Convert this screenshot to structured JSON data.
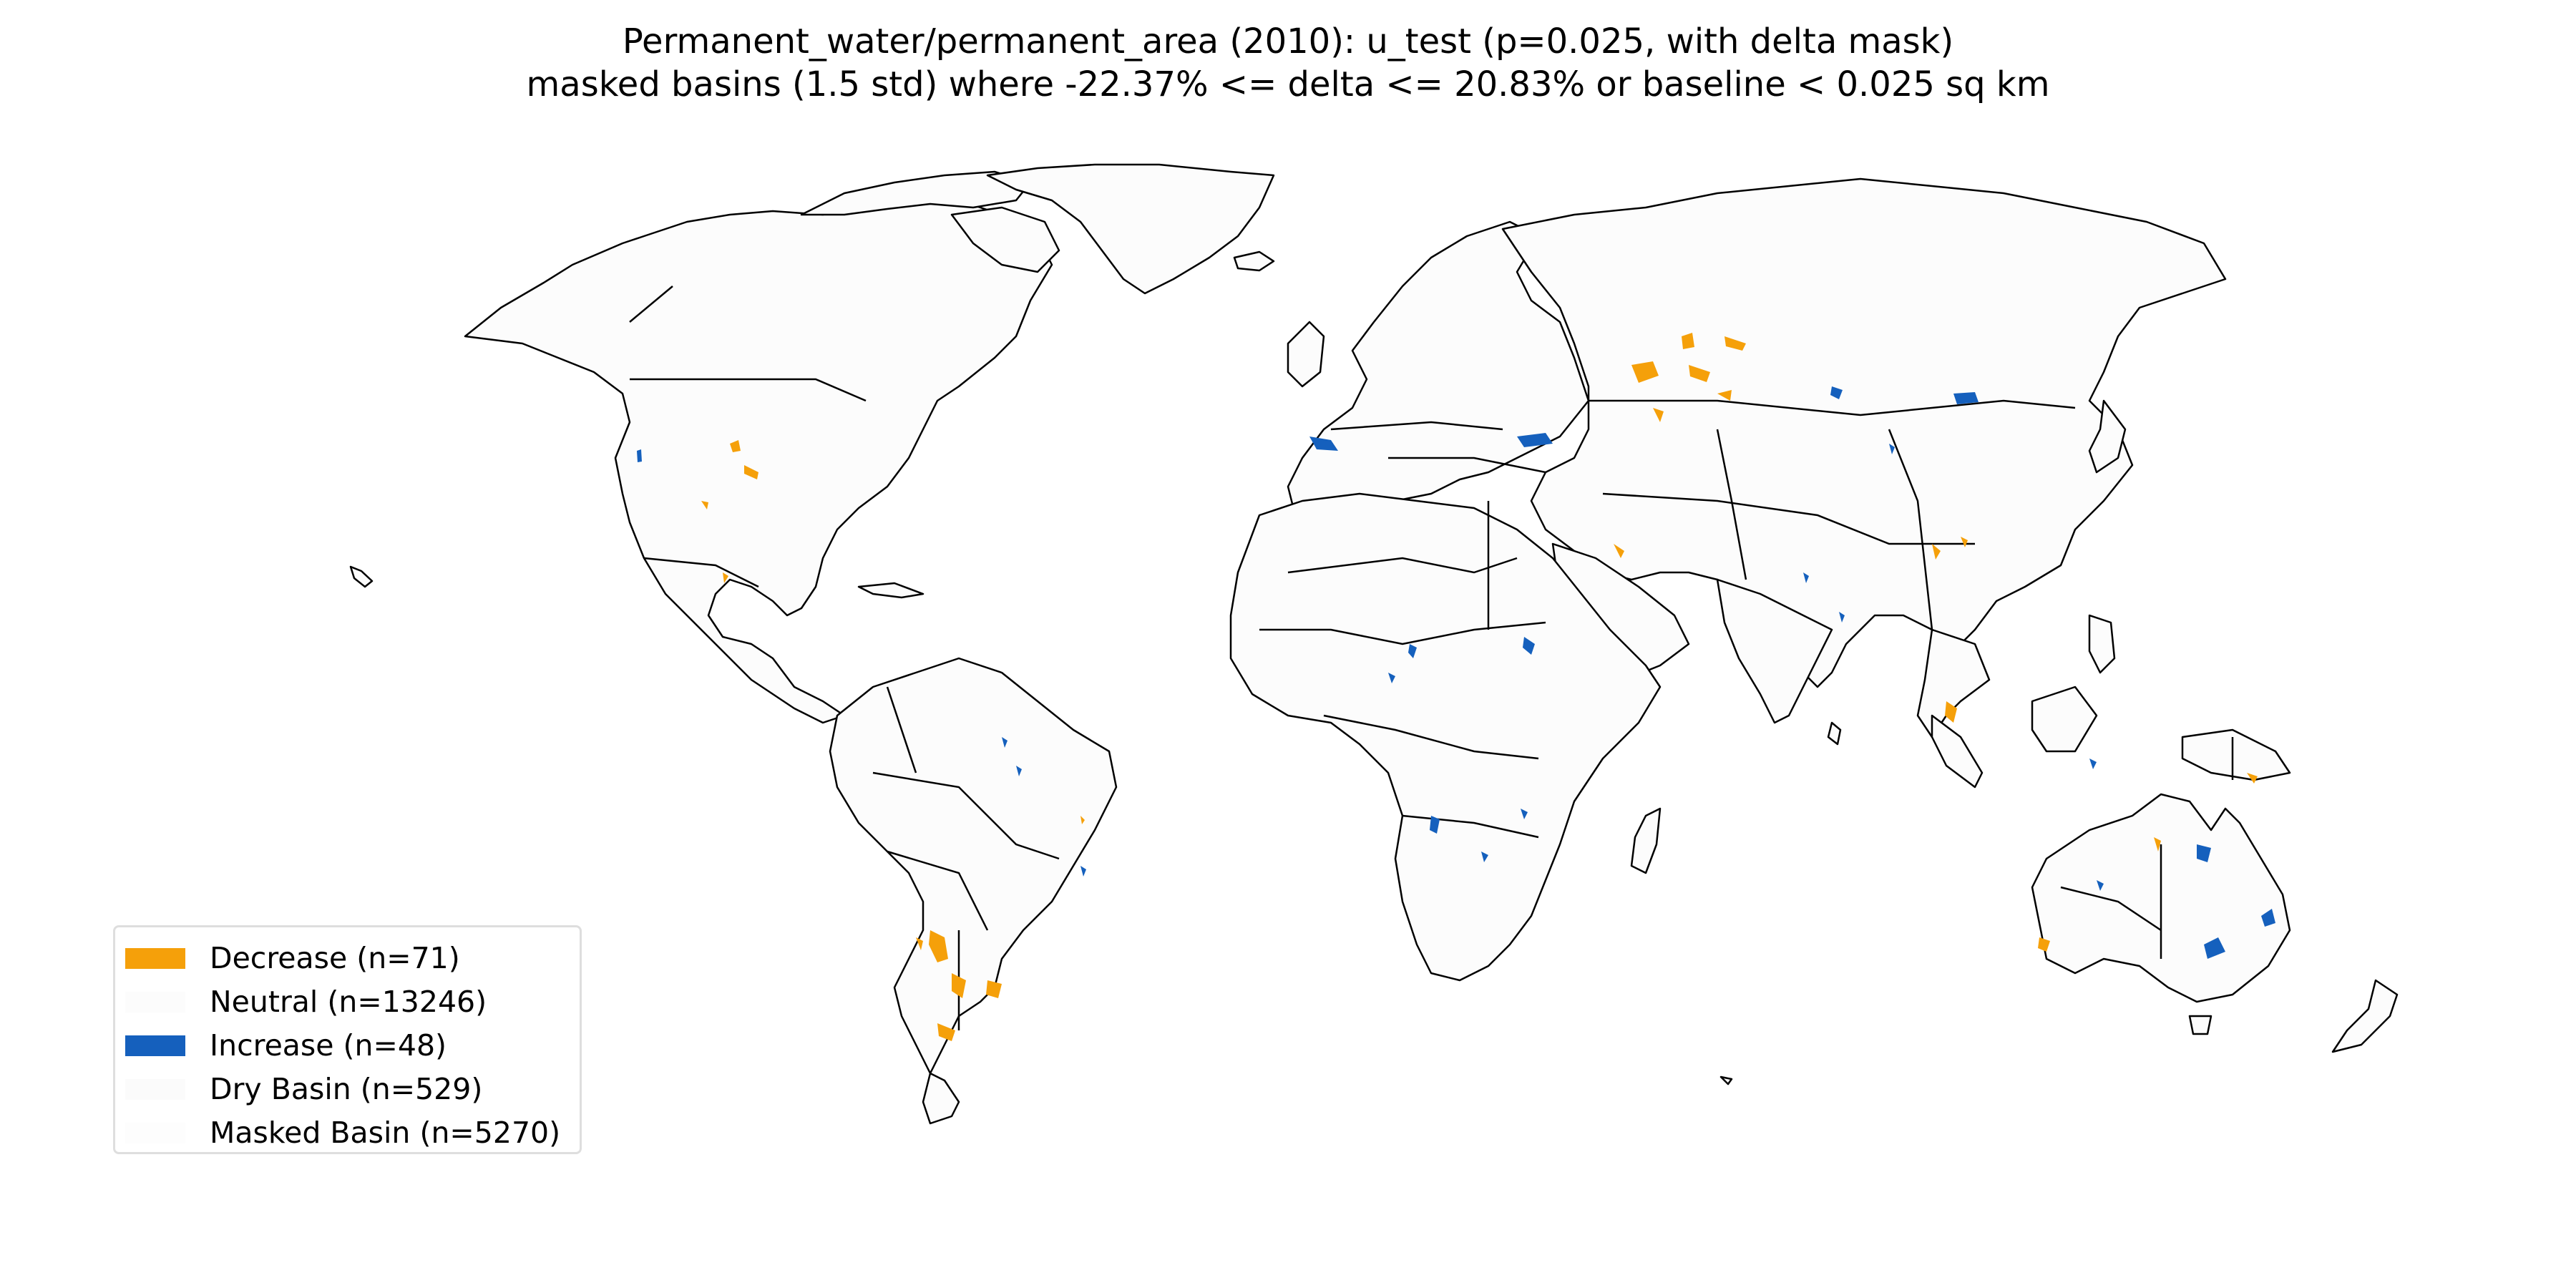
{
  "title": {
    "line1": "Permanent_water/permanent_area (2010): u_test (p=0.025, with delta mask)",
    "line2": "masked basins (1.5 std) where -22.37% <= delta <= 20.83% or baseline < 0.025 sq km"
  },
  "legend": {
    "items": [
      {
        "label": "Decrease (n=71)",
        "color": "#f5a00a"
      },
      {
        "label": "Neutral (n=13246)",
        "color": "#fcfcfc"
      },
      {
        "label": "Increase (n=48)",
        "color": "#1560bd"
      },
      {
        "label": "Dry Basin (n=529)",
        "color": "#fbfbfb"
      },
      {
        "label": "Masked Basin (n=5270)",
        "color": "#fdfdfd"
      }
    ]
  },
  "map": {
    "projection": "equirectangular world map with country borders",
    "land_color": "#fcfcfc",
    "border_color": "#000000",
    "decrease_color": "#f5a00a",
    "increase_color": "#1560bd"
  }
}
